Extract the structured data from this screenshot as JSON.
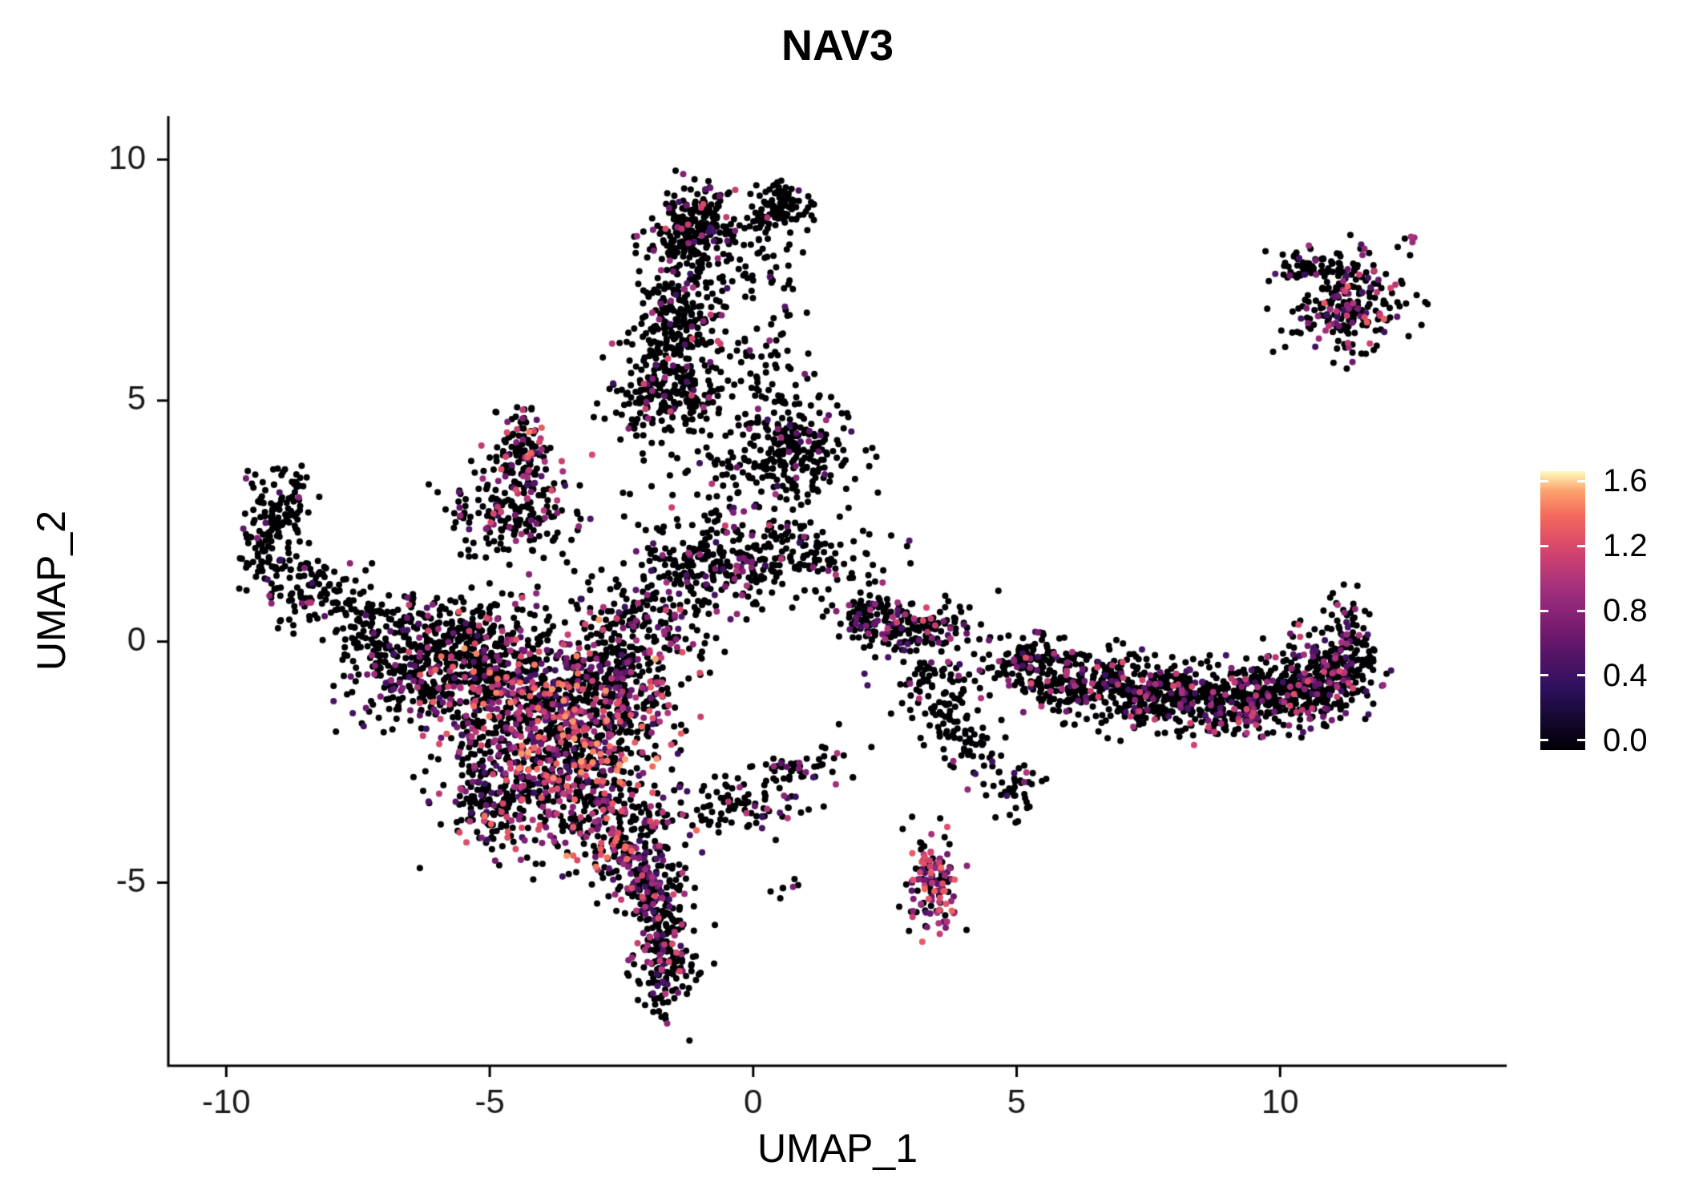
{
  "chart_data": {
    "type": "scatter",
    "title": "NAV3",
    "xlabel": "UMAP_1",
    "ylabel": "UMAP_2",
    "xlim": [
      -11.1,
      14.3
    ],
    "ylim": [
      -8.8,
      10.9
    ],
    "x_ticks": [
      -10,
      -5,
      0,
      5,
      10
    ],
    "y_ticks": [
      10,
      5,
      0,
      -5
    ],
    "grid": false,
    "background": "#ffffff",
    "axis_color": "#000000",
    "text_color": "#1a1a1a",
    "point_radius": 4,
    "seed": 42,
    "legend": {
      "position": "right",
      "vmin": 0.0,
      "vmax": 1.6,
      "ticks": [
        {
          "label": "1.6",
          "value": 1.6
        },
        {
          "label": "1.2",
          "value": 1.2
        },
        {
          "label": "0.8",
          "value": 0.8
        },
        {
          "label": "0.4",
          "value": 0.4
        },
        {
          "label": "0.0",
          "value": 0.0
        }
      ]
    },
    "colormap": {
      "name": "magma",
      "stops": [
        {
          "t": 0.0,
          "color": "#000004"
        },
        {
          "t": 0.22,
          "color": "#2c105c"
        },
        {
          "t": 0.42,
          "color": "#71196e"
        },
        {
          "t": 0.58,
          "color": "#a3307e"
        },
        {
          "t": 0.72,
          "color": "#d6456c"
        },
        {
          "t": 0.84,
          "color": "#f4695c"
        },
        {
          "t": 0.93,
          "color": "#fca26d"
        },
        {
          "t": 1.0,
          "color": "#fcfdbf"
        }
      ]
    },
    "clusters": [
      {
        "name": "top-stream-head",
        "cx": -1.1,
        "cy": 8.6,
        "sx": 0.38,
        "sy": 0.42,
        "n": 230,
        "colored_frac": 0.1,
        "expr_min": 0.4,
        "expr_max": 1.2
      },
      {
        "name": "top-stream-mid",
        "cx": -1.5,
        "cy": 6.7,
        "sx": 0.42,
        "sy": 0.95,
        "n": 270,
        "colored_frac": 0.1,
        "expr_min": 0.4,
        "expr_max": 1.2
      },
      {
        "name": "top-stream-base",
        "cx": -1.6,
        "cy": 5.1,
        "sx": 0.6,
        "sy": 0.5,
        "n": 190,
        "colored_frac": 0.12,
        "expr_min": 0.4,
        "expr_max": 1.2
      },
      {
        "name": "top-right-knob",
        "cx": 0.55,
        "cy": 9.0,
        "sx": 0.3,
        "sy": 0.24,
        "n": 100,
        "colored_frac": 0.08,
        "expr_min": 0.5,
        "expr_max": 1.0
      },
      {
        "name": "top-sparse",
        "cx": 0.0,
        "cy": 7.9,
        "sx": 0.55,
        "sy": 0.6,
        "n": 60,
        "colored_frac": 0.05,
        "expr_min": 0.4,
        "expr_max": 0.9
      },
      {
        "name": "upper-mid-cluster",
        "cx": 0.6,
        "cy": 3.9,
        "sx": 0.6,
        "sy": 0.55,
        "n": 230,
        "colored_frac": 0.08,
        "expr_min": 0.4,
        "expr_max": 1.0
      },
      {
        "name": "upper-mid-bridge",
        "cx": 0.2,
        "cy": 5.5,
        "sx": 0.45,
        "sy": 0.8,
        "n": 70,
        "colored_frac": 0.06,
        "expr_min": 0.4,
        "expr_max": 0.9
      },
      {
        "name": "mid-band",
        "cx": 0.3,
        "cy": 1.8,
        "sx": 1.0,
        "sy": 0.42,
        "n": 240,
        "colored_frac": 0.15,
        "expr_min": 0.4,
        "expr_max": 1.1
      },
      {
        "name": "mid-band-left",
        "cx": -1.3,
        "cy": 1.3,
        "sx": 0.8,
        "sy": 0.5,
        "n": 130,
        "colored_frac": 0.12,
        "expr_min": 0.4,
        "expr_max": 1.0
      },
      {
        "name": "triangle-tip",
        "cx": -4.35,
        "cy": 4.0,
        "sx": 0.25,
        "sy": 0.45,
        "n": 110,
        "colored_frac": 0.25,
        "expr_min": 0.5,
        "expr_max": 1.4
      },
      {
        "name": "triangle-body",
        "cx": -4.5,
        "cy": 2.7,
        "sx": 0.6,
        "sy": 0.55,
        "n": 210,
        "colored_frac": 0.2,
        "expr_min": 0.4,
        "expr_max": 1.2
      },
      {
        "name": "left-arm-top",
        "cx": -8.9,
        "cy": 2.9,
        "sx": 0.3,
        "sy": 0.4,
        "n": 70,
        "colored_frac": 0.04,
        "expr_min": 0.4,
        "expr_max": 0.9
      },
      {
        "name": "left-arm-mid",
        "cx": -9.2,
        "cy": 1.9,
        "sx": 0.32,
        "sy": 0.45,
        "n": 90,
        "colored_frac": 0.04,
        "expr_min": 0.4,
        "expr_max": 0.9
      },
      {
        "name": "left-arm-elbow",
        "cx": -8.3,
        "cy": 1.1,
        "sx": 0.5,
        "sy": 0.35,
        "n": 90,
        "colored_frac": 0.06,
        "expr_min": 0.4,
        "expr_max": 1.0
      },
      {
        "name": "left-arm-fore",
        "cx": -7.3,
        "cy": 0.5,
        "sx": 0.55,
        "sy": 0.3,
        "n": 80,
        "colored_frac": 0.08,
        "expr_min": 0.4,
        "expr_max": 1.0
      },
      {
        "name": "main-upper-left",
        "cx": -5.4,
        "cy": -0.6,
        "sx": 0.8,
        "sy": 0.6,
        "n": 340,
        "colored_frac": 0.3,
        "expr_min": 0.4,
        "expr_max": 1.3
      },
      {
        "name": "main-core-upper",
        "cx": -4.0,
        "cy": -1.2,
        "sx": 0.9,
        "sy": 0.75,
        "n": 480,
        "colored_frac": 0.45,
        "expr_min": 0.4,
        "expr_max": 1.5
      },
      {
        "name": "main-core-lower",
        "cx": -3.3,
        "cy": -2.7,
        "sx": 0.8,
        "sy": 0.85,
        "n": 480,
        "colored_frac": 0.45,
        "expr_min": 0.4,
        "expr_max": 1.5
      },
      {
        "name": "main-lower-left",
        "cx": -4.9,
        "cy": -3.0,
        "sx": 0.6,
        "sy": 0.65,
        "n": 240,
        "colored_frac": 0.3,
        "expr_min": 0.4,
        "expr_max": 1.3
      },
      {
        "name": "main-right-lobe",
        "cx": -2.5,
        "cy": -0.8,
        "sx": 0.6,
        "sy": 0.7,
        "n": 260,
        "colored_frac": 0.3,
        "expr_min": 0.4,
        "expr_max": 1.3
      },
      {
        "name": "main-top-edge",
        "cx": -5.6,
        "cy": 0.2,
        "sx": 1.0,
        "sy": 0.4,
        "n": 160,
        "colored_frac": 0.15,
        "expr_min": 0.4,
        "expr_max": 1.1
      },
      {
        "name": "main-left-edge",
        "cx": -6.6,
        "cy": -0.7,
        "sx": 0.6,
        "sy": 0.5,
        "n": 130,
        "colored_frac": 0.12,
        "expr_min": 0.4,
        "expr_max": 1.1
      },
      {
        "name": "main-bottom-tip",
        "cx": -2.4,
        "cy": -4.2,
        "sx": 0.5,
        "sy": 0.55,
        "n": 190,
        "colored_frac": 0.35,
        "expr_min": 0.4,
        "expr_max": 1.4
      },
      {
        "name": "main-bridge-mid",
        "cx": -2.1,
        "cy": 0.3,
        "sx": 0.6,
        "sy": 0.5,
        "n": 120,
        "colored_frac": 0.2,
        "expr_min": 0.4,
        "expr_max": 1.2
      },
      {
        "name": "tail-upper",
        "cx": -1.9,
        "cy": -5.3,
        "sx": 0.35,
        "sy": 0.5,
        "n": 150,
        "colored_frac": 0.25,
        "expr_min": 0.4,
        "expr_max": 1.2
      },
      {
        "name": "tail-lower",
        "cx": -1.7,
        "cy": -6.6,
        "sx": 0.3,
        "sy": 0.55,
        "n": 170,
        "colored_frac": 0.2,
        "expr_min": 0.4,
        "expr_max": 1.2
      },
      {
        "name": "small-chain-left",
        "cx": -0.3,
        "cy": -3.4,
        "sx": 0.5,
        "sy": 0.3,
        "n": 80,
        "colored_frac": 0.2,
        "expr_min": 0.4,
        "expr_max": 1.1
      },
      {
        "name": "small-chain-right",
        "cx": 0.9,
        "cy": -2.7,
        "sx": 0.5,
        "sy": 0.25,
        "n": 55,
        "colored_frac": 0.15,
        "expr_min": 0.4,
        "expr_max": 1.0
      },
      {
        "name": "tiny-pair",
        "cx": 0.65,
        "cy": -5.2,
        "sx": 0.12,
        "sy": 0.12,
        "n": 7,
        "colored_frac": 0.4,
        "expr_min": 0.6,
        "expr_max": 0.9
      },
      {
        "name": "center-right",
        "cx": 2.9,
        "cy": 0.3,
        "sx": 0.65,
        "sy": 0.3,
        "n": 170,
        "colored_frac": 0.2,
        "expr_min": 0.4,
        "expr_max": 1.2
      },
      {
        "name": "center-right-upper",
        "cx": 2.1,
        "cy": 0.65,
        "sx": 0.3,
        "sy": 0.2,
        "n": 50,
        "colored_frac": 0.15,
        "expr_min": 0.4,
        "expr_max": 1.1
      },
      {
        "name": "diag-trail-1",
        "cx": 3.6,
        "cy": -1.3,
        "sx": 0.25,
        "sy": 0.5,
        "n": 60,
        "colored_frac": 0.08,
        "expr_min": 0.4,
        "expr_max": 1.0
      },
      {
        "name": "diag-trail-2",
        "cx": 4.2,
        "cy": -2.2,
        "sx": 0.3,
        "sy": 0.5,
        "n": 50,
        "colored_frac": 0.08,
        "expr_min": 0.4,
        "expr_max": 1.0
      },
      {
        "name": "diag-trail-3",
        "cx": 4.9,
        "cy": -3.1,
        "sx": 0.28,
        "sy": 0.3,
        "n": 40,
        "colored_frac": 0.08,
        "expr_min": 0.4,
        "expr_max": 1.0
      },
      {
        "name": "lower-right-blob",
        "cx": 3.4,
        "cy": -5.0,
        "sx": 0.25,
        "sy": 0.5,
        "n": 130,
        "colored_frac": 0.55,
        "expr_min": 0.5,
        "expr_max": 1.4
      },
      {
        "name": "band-1",
        "cx": 5.2,
        "cy": -0.5,
        "sx": 0.5,
        "sy": 0.3,
        "n": 130,
        "colored_frac": 0.15,
        "expr_min": 0.4,
        "expr_max": 1.2
      },
      {
        "name": "band-2",
        "cx": 6.3,
        "cy": -0.85,
        "sx": 0.7,
        "sy": 0.35,
        "n": 210,
        "colored_frac": 0.18,
        "expr_min": 0.4,
        "expr_max": 1.2
      },
      {
        "name": "band-3",
        "cx": 7.6,
        "cy": -1.1,
        "sx": 0.7,
        "sy": 0.35,
        "n": 230,
        "colored_frac": 0.18,
        "expr_min": 0.4,
        "expr_max": 1.2
      },
      {
        "name": "band-4",
        "cx": 8.9,
        "cy": -1.25,
        "sx": 0.7,
        "sy": 0.35,
        "n": 260,
        "colored_frac": 0.2,
        "expr_min": 0.4,
        "expr_max": 1.2
      },
      {
        "name": "band-5",
        "cx": 10.1,
        "cy": -1.0,
        "sx": 0.6,
        "sy": 0.35,
        "n": 240,
        "colored_frac": 0.2,
        "expr_min": 0.4,
        "expr_max": 1.2
      },
      {
        "name": "band-right-end",
        "cx": 11.0,
        "cy": -0.65,
        "sx": 0.4,
        "sy": 0.4,
        "n": 210,
        "colored_frac": 0.2,
        "expr_min": 0.4,
        "expr_max": 1.2
      },
      {
        "name": "band-upturn",
        "cx": 11.3,
        "cy": 0.3,
        "sx": 0.25,
        "sy": 0.5,
        "n": 60,
        "colored_frac": 0.1,
        "expr_min": 0.4,
        "expr_max": 1.0
      },
      {
        "name": "top-right-cluster",
        "cx": 11.3,
        "cy": 7.0,
        "sx": 0.5,
        "sy": 0.5,
        "n": 230,
        "colored_frac": 0.22,
        "expr_min": 0.4,
        "expr_max": 1.3
      },
      {
        "name": "top-right-wing",
        "cx": 10.6,
        "cy": 7.8,
        "sx": 0.4,
        "sy": 0.18,
        "n": 60,
        "colored_frac": 0.1,
        "expr_min": 0.4,
        "expr_max": 1.0
      },
      {
        "name": "top-right-outlier",
        "cx": 12.5,
        "cy": 8.3,
        "sx": 0.1,
        "sy": 0.1,
        "n": 4,
        "colored_frac": 0.8,
        "expr_min": 0.7,
        "expr_max": 1.0
      },
      {
        "name": "scatter-sparse-mid",
        "cx": -0.3,
        "cy": 3.0,
        "sx": 1.1,
        "sy": 0.9,
        "n": 70,
        "colored_frac": 0.08,
        "expr_min": 0.4,
        "expr_max": 1.0
      },
      {
        "name": "band-gap-sparse",
        "cx": 3.1,
        "cy": -0.9,
        "sx": 0.6,
        "sy": 0.6,
        "n": 40,
        "colored_frac": 0.1,
        "expr_min": 0.4,
        "expr_max": 1.0
      }
    ]
  }
}
